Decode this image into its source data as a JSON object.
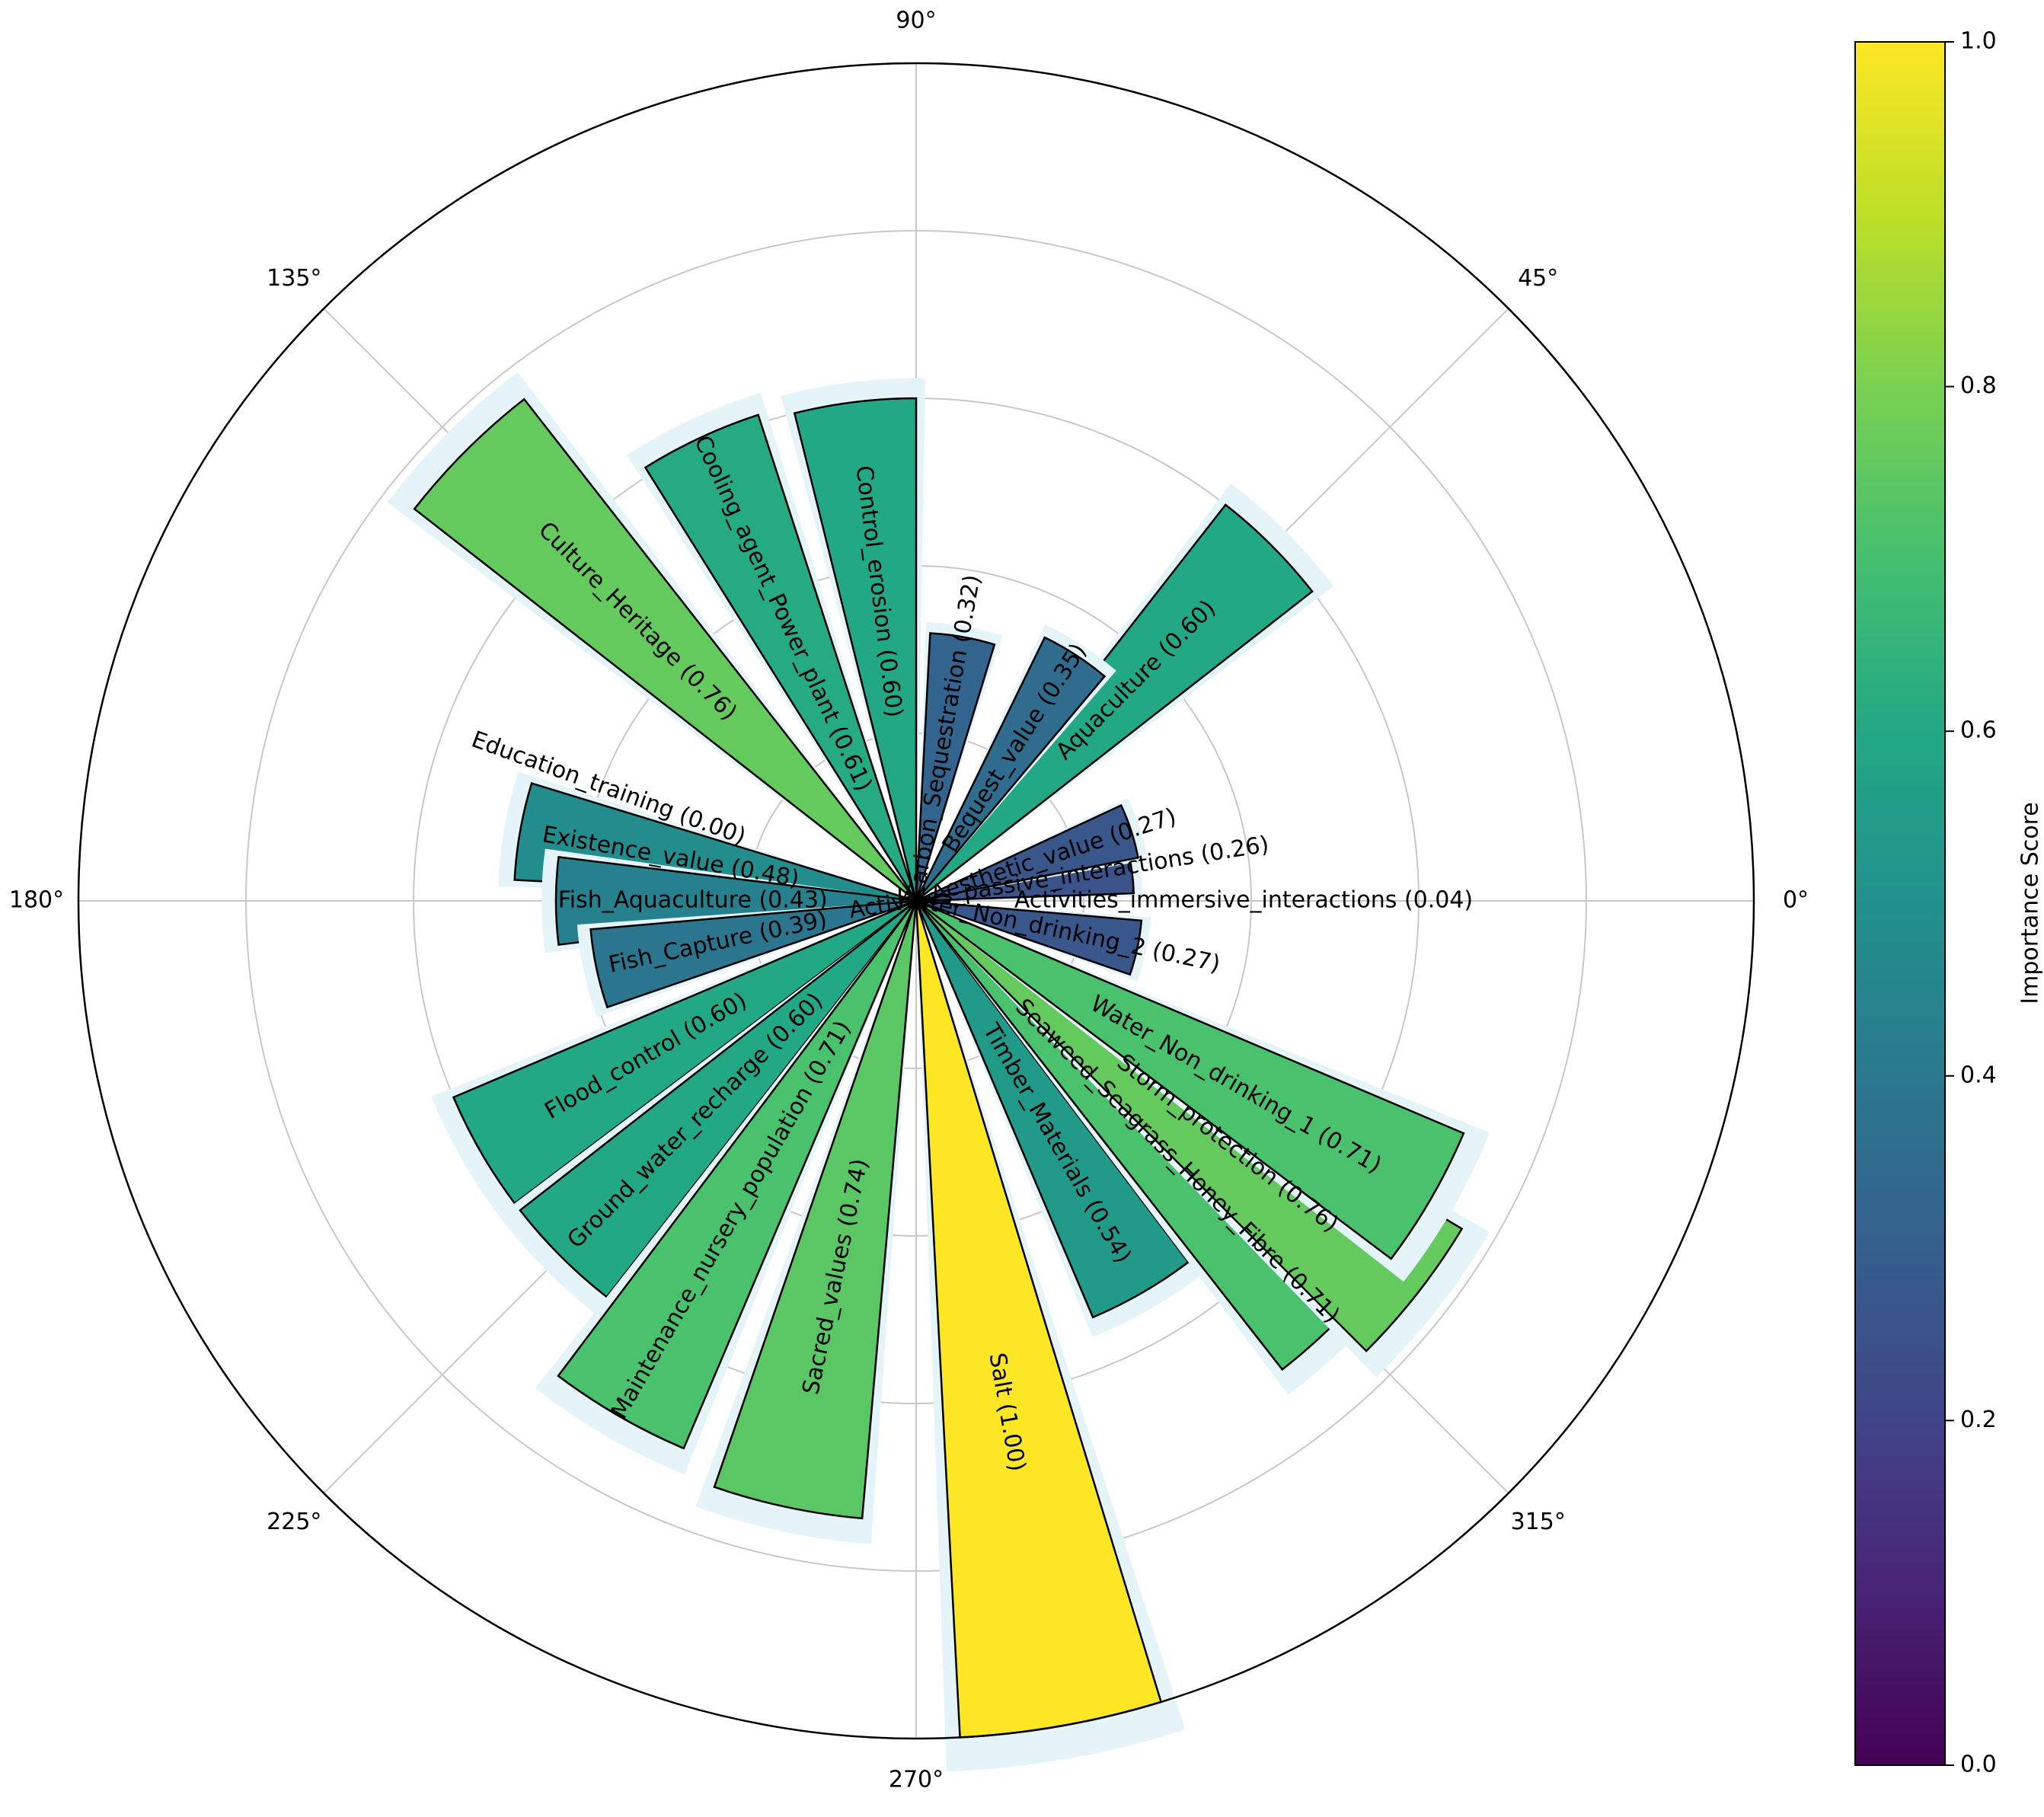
{
  "chart_data": {
    "type": "polar_bar",
    "colorbar": {
      "label": "Importance Score",
      "range": [
        0,
        1.0
      ],
      "ticks": [
        "0.0",
        "0.2",
        "0.4",
        "0.6",
        "0.8",
        "1.0"
      ]
    },
    "angle_ticks": [
      "0°",
      "45°",
      "90°",
      "135°",
      "180°",
      "225°",
      "270°",
      "315°"
    ],
    "radial_max": 1.0,
    "grid": true,
    "series": [
      {
        "label": "Activities_immersive_interactions (0.04)",
        "value": 0.04,
        "angle": 0
      },
      {
        "label": "Activities_passive_interactions (0.26)",
        "value": 0.26,
        "angle": 9
      },
      {
        "label": "Aesthetic_value (0.27)",
        "value": 0.27,
        "angle": 18
      },
      {
        "label": "Aquaculture (0.60)",
        "value": 0.6,
        "angle": 45
      },
      {
        "label": "Bequest_value (0.35)",
        "value": 0.35,
        "angle": 57
      },
      {
        "label": "Carbon_Sequestration (0.32)",
        "value": 0.32,
        "angle": 80
      },
      {
        "label": "Control_erosion (0.60)",
        "value": 0.6,
        "angle": 97
      },
      {
        "label": "Cooling_agent_Power_plant (0.61)",
        "value": 0.61,
        "angle": 115
      },
      {
        "label": "Culture_Heritage (0.76)",
        "value": 0.76,
        "angle": 135
      },
      {
        "label": "Education_training (0.00)",
        "value": 0.0,
        "angle": 160
      },
      {
        "label": "Existence_value (0.48)",
        "value": 0.48,
        "angle": 170
      },
      {
        "label": "Fish_Aquaculture (0.43)",
        "value": 0.43,
        "angle": 180
      },
      {
        "label": "Fish_Capture (0.39)",
        "value": 0.39,
        "angle": 192
      },
      {
        "label": "Flood_control (0.60)",
        "value": 0.6,
        "angle": 210
      },
      {
        "label": "Ground_water_recharge (0.60)",
        "value": 0.6,
        "angle": 225
      },
      {
        "label": "Maintenance_nursery_population (0.71)",
        "value": 0.71,
        "angle": 240
      },
      {
        "label": "Sacred_values (0.74)",
        "value": 0.74,
        "angle": 258
      },
      {
        "label": "Salt (1.00)",
        "value": 1.0,
        "angle": 280
      },
      {
        "label": "Timber_Materials (0.54)",
        "value": 0.54,
        "angle": 300
      },
      {
        "label": "Seaweed_Seagrass_Honey_Fibre (0.71)",
        "value": 0.71,
        "angle": 315
      },
      {
        "label": "Storm_protection (0.76)",
        "value": 0.76,
        "angle": 322
      },
      {
        "label": "Water_Non_drinking_1 (0.71)",
        "value": 0.71,
        "angle": 330
      },
      {
        "label": "Water_Non_drinking_2 (0.27)",
        "value": 0.27,
        "angle": 348
      }
    ]
  }
}
